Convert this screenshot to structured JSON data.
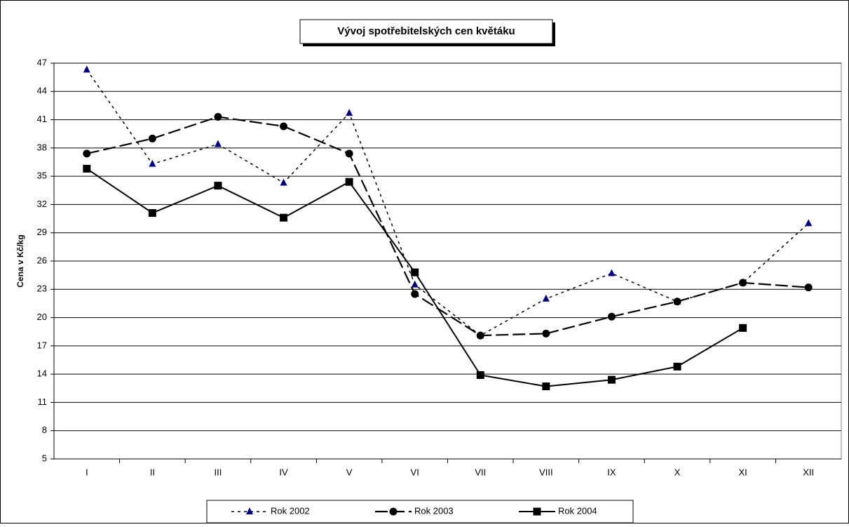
{
  "chart_data": {
    "type": "line",
    "title": "Vývoj spotřebitelských cen květáku",
    "ylabel": "Cena v Kč/kg",
    "categories": [
      "I",
      "II",
      "III",
      "IV",
      "V",
      "VI",
      "VII",
      "VIII",
      "IX",
      "X",
      "XI",
      "XII"
    ],
    "series": [
      {
        "name": "Rok 2002",
        "color": "#000080",
        "values": [
          46.3,
          36.3,
          38.4,
          34.3,
          41.7,
          23.5,
          18.1,
          22.0,
          24.7,
          21.7,
          23.7,
          30.0
        ]
      },
      {
        "name": "Rok 2003",
        "color": "#000000",
        "values": [
          37.4,
          39.0,
          41.3,
          40.3,
          37.4,
          22.5,
          18.1,
          18.3,
          20.1,
          21.7,
          23.7,
          23.2
        ]
      },
      {
        "name": "Rok 2004",
        "color": "#000000",
        "values": [
          35.8,
          31.1,
          34.0,
          30.6,
          34.4,
          24.8,
          13.9,
          12.7,
          13.4,
          14.8,
          18.9,
          null
        ]
      }
    ],
    "ylim": [
      5,
      47
    ],
    "yticks": [
      5,
      8,
      11,
      14,
      17,
      20,
      23,
      26,
      29,
      32,
      35,
      38,
      41,
      44,
      47
    ],
    "grid": true,
    "legend": "bottom"
  }
}
